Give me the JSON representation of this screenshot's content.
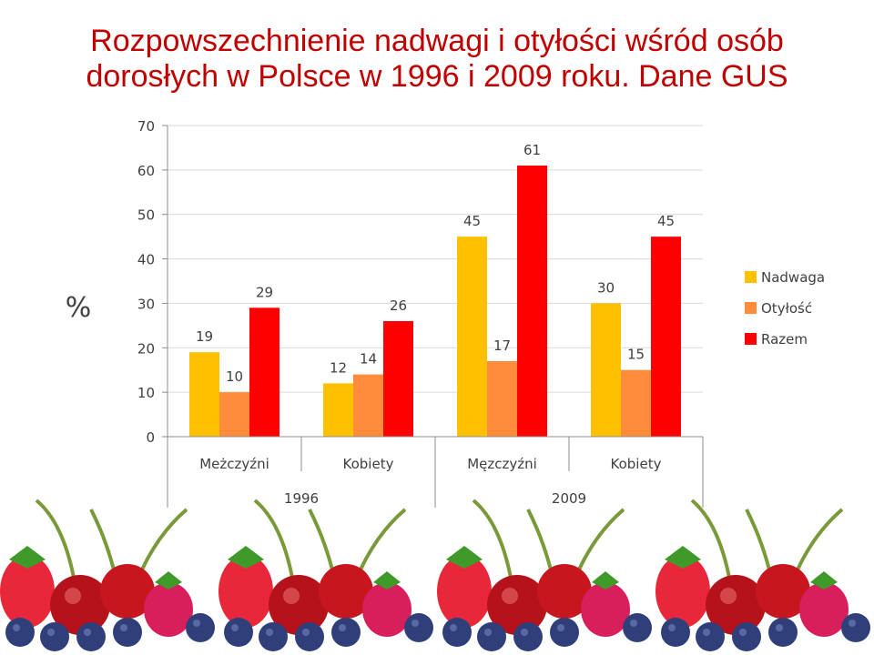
{
  "slide": {
    "title_line1": "Rozpowszechnienie nadwagi i otyłości wśród osób",
    "title_line2": "dorosłych w Polsce w 1996 i 2009 roku. Dane GUS"
  },
  "chart_data": {
    "type": "bar",
    "title": "",
    "ylabel": "%",
    "xlabel": "",
    "ylim": [
      0,
      70
    ],
    "yticks": [
      0,
      10,
      20,
      30,
      40,
      50,
      60,
      70
    ],
    "grid": true,
    "legend_position": "right",
    "categories": [
      "Meżczyźni",
      "Kobiety",
      "Męzczyźni",
      "Kobiety"
    ],
    "groups": [
      {
        "label": "1996",
        "categories": [
          "Meżczyźni",
          "Kobiety"
        ]
      },
      {
        "label": "2009",
        "categories": [
          "Męzczyźni",
          "Kobiety"
        ]
      }
    ],
    "series": [
      {
        "name": "Nadwaga",
        "color": "#ffc000",
        "values": [
          19,
          12,
          45,
          30
        ]
      },
      {
        "name": "Otyłość",
        "color": "#ff8c3a",
        "values": [
          10,
          14,
          17,
          15
        ]
      },
      {
        "name": "Razem",
        "color": "#ff0000",
        "values": [
          29,
          26,
          61,
          45
        ]
      }
    ]
  },
  "colors": {
    "title": "#c00000",
    "axis": "#8c8c8c",
    "gridline": "#d9d9d9",
    "text": "#404040"
  },
  "decoration": {
    "border_icon": "berries-and-cherries-border"
  }
}
